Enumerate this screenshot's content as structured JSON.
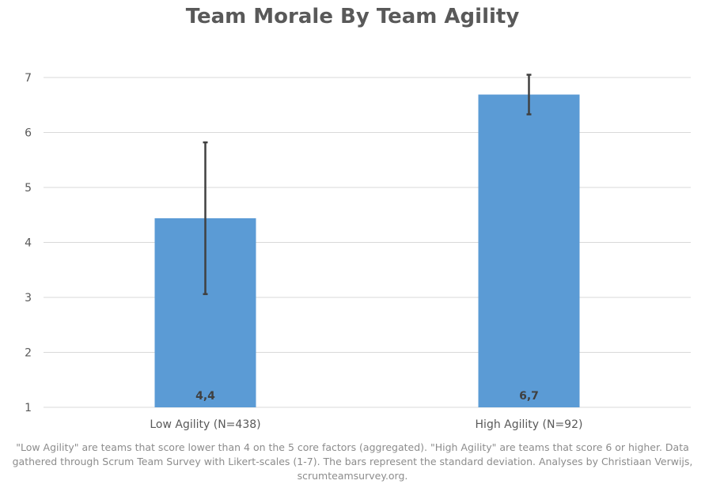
{
  "chart_data": {
    "type": "bar",
    "title": "Team Morale By Team Agility",
    "categories": [
      "Low Agility (N=438)",
      "High Agility (N=92)"
    ],
    "series": [
      {
        "values": [
          4.44,
          6.69
        ],
        "data_labels": [
          "4,4",
          "6,7"
        ],
        "error_low": [
          3.06,
          6.33
        ],
        "error_high": [
          5.82,
          7.05
        ]
      }
    ],
    "ylim": [
      1,
      7
    ],
    "yticks": [
      "1",
      "2",
      "3",
      "4",
      "5",
      "6",
      "7"
    ],
    "xlabel": "",
    "ylabel": "",
    "grid": true,
    "legend": "none",
    "colors": {
      "bar": "#5b9bd5",
      "error_bar": "#404040",
      "grid": "#d9d9d9",
      "text": "#595959"
    }
  },
  "footnote": "\"Low Agility\" are teams that score lower than 4 on the 5 core factors (aggregated). \"High Agility\" are teams that score 6 or higher.  Data gathered through Scrum Team Survey with Likert-scales (1-7). The bars represent the standard deviation. Analyses by Christiaan Verwijs, scrumteamsurvey.org."
}
